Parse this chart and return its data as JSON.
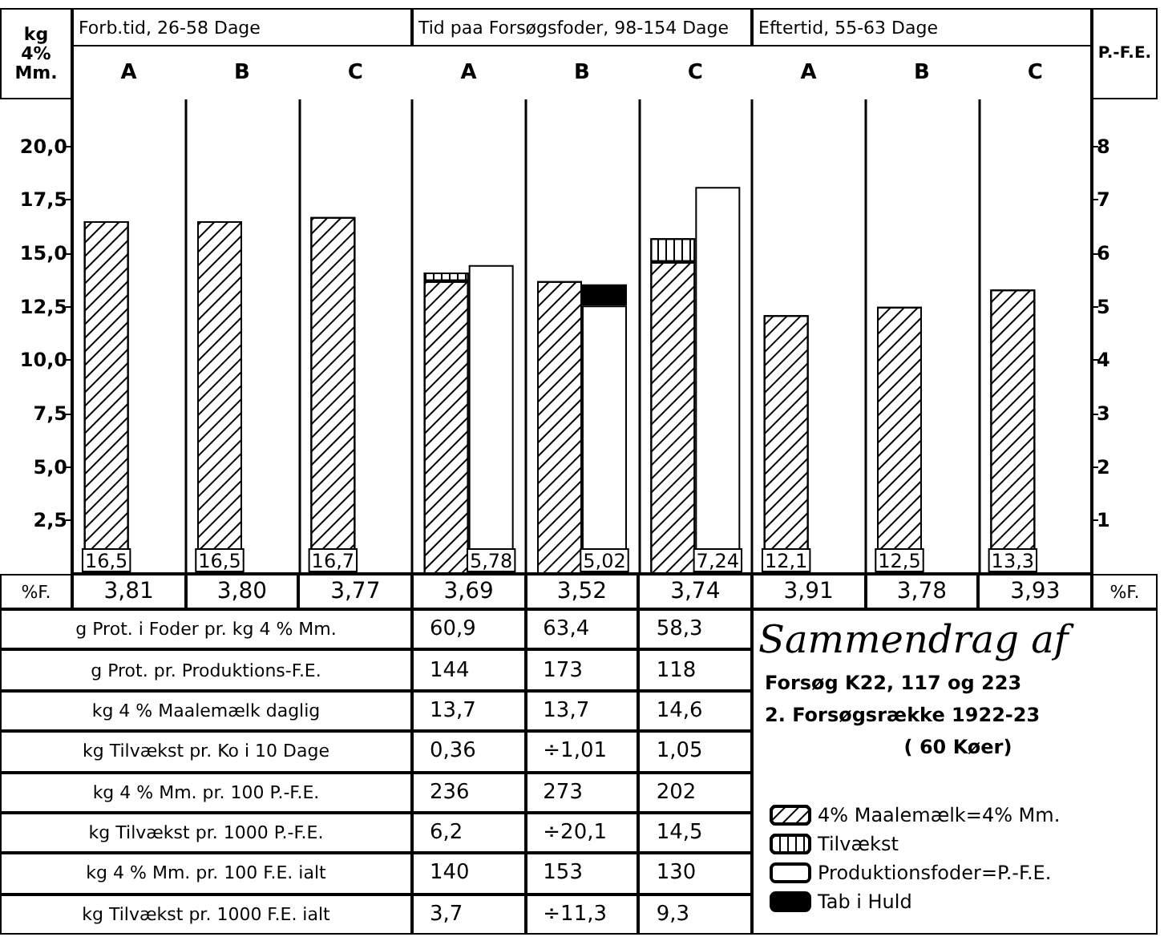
{
  "chart_data": {
    "type": "bar",
    "title": "Sammendrag af",
    "subtitle": "Forsøg K22, 117 og 223",
    "ylabel": "kg 4% Mm.",
    "y2label": "P.-F.E.",
    "categories": [
      "A",
      "B",
      "C",
      "A",
      "B",
      "C",
      "A",
      "B",
      "C"
    ],
    "series": [
      {
        "name": "4% Maalemælk=4% Mm.",
        "color": "#ffffff",
        "values": [
          16.5,
          16.5,
          16.7,
          13.7,
          13.7,
          14.6,
          12.1,
          12.5,
          13.3
        ],
        "value_labels": [
          "16,5",
          "16,5",
          "16,7",
          null,
          null,
          null,
          "12,1",
          "12,5",
          "13,3"
        ]
      },
      {
        "name": "Tilvækst",
        "color": "#ffffff",
        "values": [
          null,
          null,
          null,
          0.4,
          null,
          1.1,
          null,
          null,
          null
        ]
      },
      {
        "name": "Produktionsfoder=P.-F.E.",
        "color": "#ffffff",
        "axis": "y2",
        "values": [
          null,
          null,
          null,
          5.78,
          5.02,
          7.24,
          null,
          null,
          null
        ],
        "value_labels": [
          null,
          null,
          null,
          "5,78",
          "5,02",
          "7,24",
          null,
          null,
          null
        ]
      },
      {
        "name": "Tab i Huld",
        "color": "#000000",
        "axis": "y2",
        "values": [
          null,
          null,
          null,
          null,
          0.4,
          null,
          null,
          null,
          null
        ]
      }
    ],
    "stacked": true,
    "ylim": [
      0,
      22.2
    ],
    "yticks": [
      {
        "value": 2.5,
        "label": "2,5"
      },
      {
        "value": 5,
        "label": "5,0"
      },
      {
        "value": 7.5,
        "label": "7,5"
      },
      {
        "value": 10,
        "label": "10,0"
      },
      {
        "value": 12.5,
        "label": "12,5"
      },
      {
        "value": 15,
        "label": "15,0"
      },
      {
        "value": 17.5,
        "label": "17,5"
      },
      {
        "value": 20,
        "label": "20,0"
      }
    ],
    "y2lim": [
      0,
      8.88
    ],
    "y2ticks": [
      1,
      2,
      3,
      4,
      5,
      6,
      7,
      8
    ],
    "grid": "x",
    "legend": "bottom right",
    "annotations": [
      "Forb.tid, 26-58 Dage",
      "Tid paa Forsøgsfoder, 98-154 Dage",
      "Eftertid, 55-63 Dage",
      "%F.",
      "%F.",
      "3,81",
      "3,80",
      "3,77",
      "3,69",
      "3,52",
      "3,74",
      "3,91",
      "3,78",
      "3,93",
      "g Prot. i Foder pr. kg 4 % Mm.",
      "60,9",
      "63,4",
      "58,3",
      "g Prot. pr. Produktions-F.E.",
      "144",
      "173",
      "118",
      "kg 4 % Maalemælk daglig",
      "13,7",
      "13,7",
      "14,6",
      "kg Tilvækst pr. Ko i 10 Dage",
      "0,36",
      "÷1,01",
      "1,05",
      "kg 4 % Mm. pr. 100 P.-F.E.",
      "236",
      "273",
      "202",
      "kg Tilvækst pr. 1000 P.-F.E.",
      "6,2",
      "÷20,1",
      "14,5",
      "kg 4 % Mm. pr. 100 F.E. ialt",
      "140",
      "153",
      "130",
      "kg Tilvækst pr. 1000 F.E. ialt",
      "3,7",
      "÷11,3",
      "9,3",
      "2. Forsøgsrække 1922-23",
      "( 60 Køer)"
    ]
  }
}
